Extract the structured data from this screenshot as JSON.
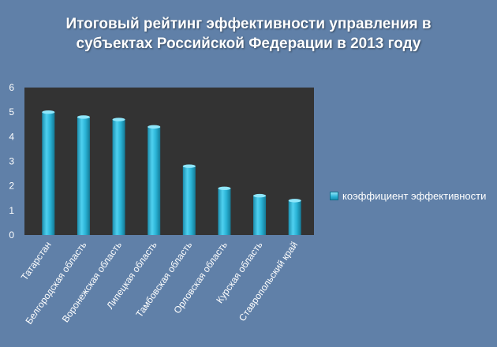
{
  "chart_data": {
    "type": "bar",
    "title_line1": "Итоговый рейтинг эффективности управления в",
    "title_line2": "субъектах Российской Федерации в 2013 году",
    "categories": [
      "Татарстан",
      "Белгородская область",
      "Воронежская область",
      "Липецкая область",
      "Тамбовская область",
      "Орловская область",
      "Курская область",
      "Ставропольский край"
    ],
    "series": [
      {
        "name": "коэффициент эффективности",
        "values": [
          5.0,
          4.8,
          4.7,
          4.4,
          2.8,
          1.9,
          1.6,
          1.4
        ]
      }
    ],
    "ylim": [
      0,
      6
    ],
    "yticks": [
      0,
      1,
      2,
      3,
      4,
      5,
      6
    ],
    "grid": false,
    "legend_position": "right",
    "colors": {
      "bar": "#2ab3d6",
      "plot_bg": "#333333",
      "page_bg": "#6080a8",
      "text": "#ffffff"
    }
  }
}
